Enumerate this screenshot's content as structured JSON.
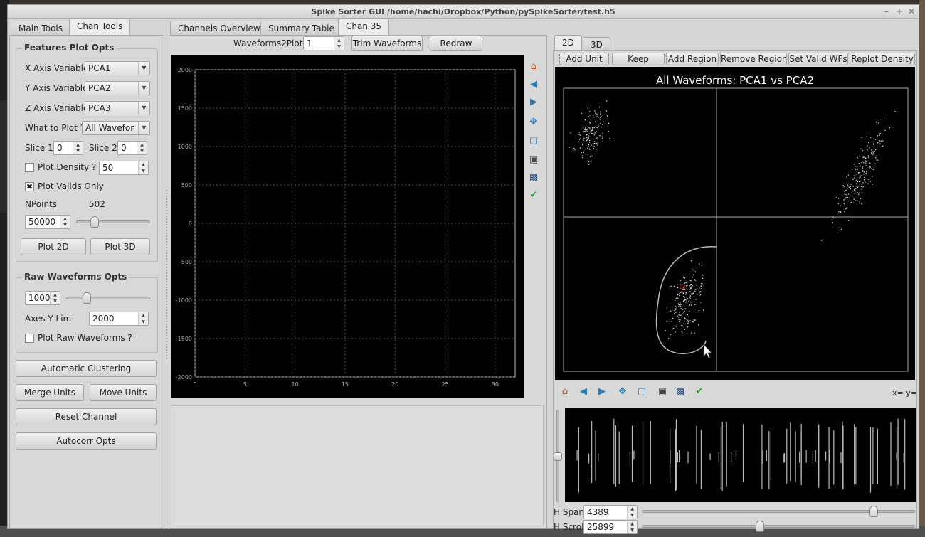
{
  "window": {
    "title": "Spike Sorter GUI /home/hachi/Dropbox/Python/pySpikeSorter/test.h5"
  },
  "left_tabs": [
    "Main Tools",
    "Chan Tools"
  ],
  "features": {
    "title": "Features Plot Opts",
    "x_label": "X Axis Variable",
    "x_value": "PCA1",
    "y_label": "Y Axis Variable",
    "y_value": "PCA2",
    "z_label": "Z Axis Variable",
    "z_value": "PCA3",
    "what_label": "What to Plot ?",
    "what_value": "All Waveforms",
    "slice1_label": "Slice 1",
    "slice1_value": "0",
    "slice2_label": "Slice 2",
    "slice2_value": "0",
    "density_label": "Plot Density ?",
    "density_value": "50",
    "density_checked": false,
    "valids_label": "Plot Valids Only",
    "valids_checked": true,
    "npoints_label": "NPoints",
    "npoints_count": "502",
    "npoints_value": "50000",
    "npoints_slider": 0.22,
    "plot2d": "Plot 2D",
    "plot3d": "Plot 3D"
  },
  "raw": {
    "title": "Raw Waveforms Opts",
    "count_value": "1000",
    "count_slider": 0.22,
    "ylim_label": "Axes Y Lim",
    "ylim_value": "2000",
    "plotraw_label": "Plot Raw Waveforms ?",
    "plotraw_checked": false
  },
  "buttons": {
    "auto": "Automatic Clustering",
    "merge": "Merge Units",
    "move": "Move Units",
    "reset": "Reset Channel",
    "autocorr": "Autocorr Opts"
  },
  "center_tabs": [
    "Channels Overview",
    "Summary Table",
    "Chan 35"
  ],
  "waveform": {
    "w2p_label": "Waveforms2Plot:",
    "w2p_value": "1",
    "trim": "Trim Waveforms",
    "redraw": "Redraw",
    "chart_data": {
      "type": "line",
      "title": "",
      "xlabel": "",
      "ylabel": "",
      "xlim": [
        0,
        32
      ],
      "ylim": [
        -2000,
        2000
      ],
      "grid": true,
      "xticks": [
        "0",
        "5",
        "10",
        "15",
        "20",
        "25",
        "30"
      ],
      "yticks": [
        "2000",
        "1500",
        "1000",
        "500",
        "0",
        "-500",
        "-1000",
        "-1500",
        "-2000"
      ],
      "series": []
    }
  },
  "right_tabs": [
    "2D",
    "3D"
  ],
  "cluster_toolbar": [
    "Add Unit",
    "Keep",
    "Add Region",
    "Remove Region",
    "Set Valid WFs",
    "Replot Density"
  ],
  "scatter": {
    "chart_data": {
      "type": "scatter",
      "title": "All Waveforms: PCA1 vs PCA2",
      "xlabel": "",
      "ylabel": "",
      "grid": false
    }
  },
  "coord_readout": "x= y=",
  "hspan": {
    "label": "H Span",
    "value": "4389",
    "slider": 0.86
  },
  "hscroll": {
    "label": "H Scroll",
    "value": "25899",
    "slider": 0.43
  }
}
